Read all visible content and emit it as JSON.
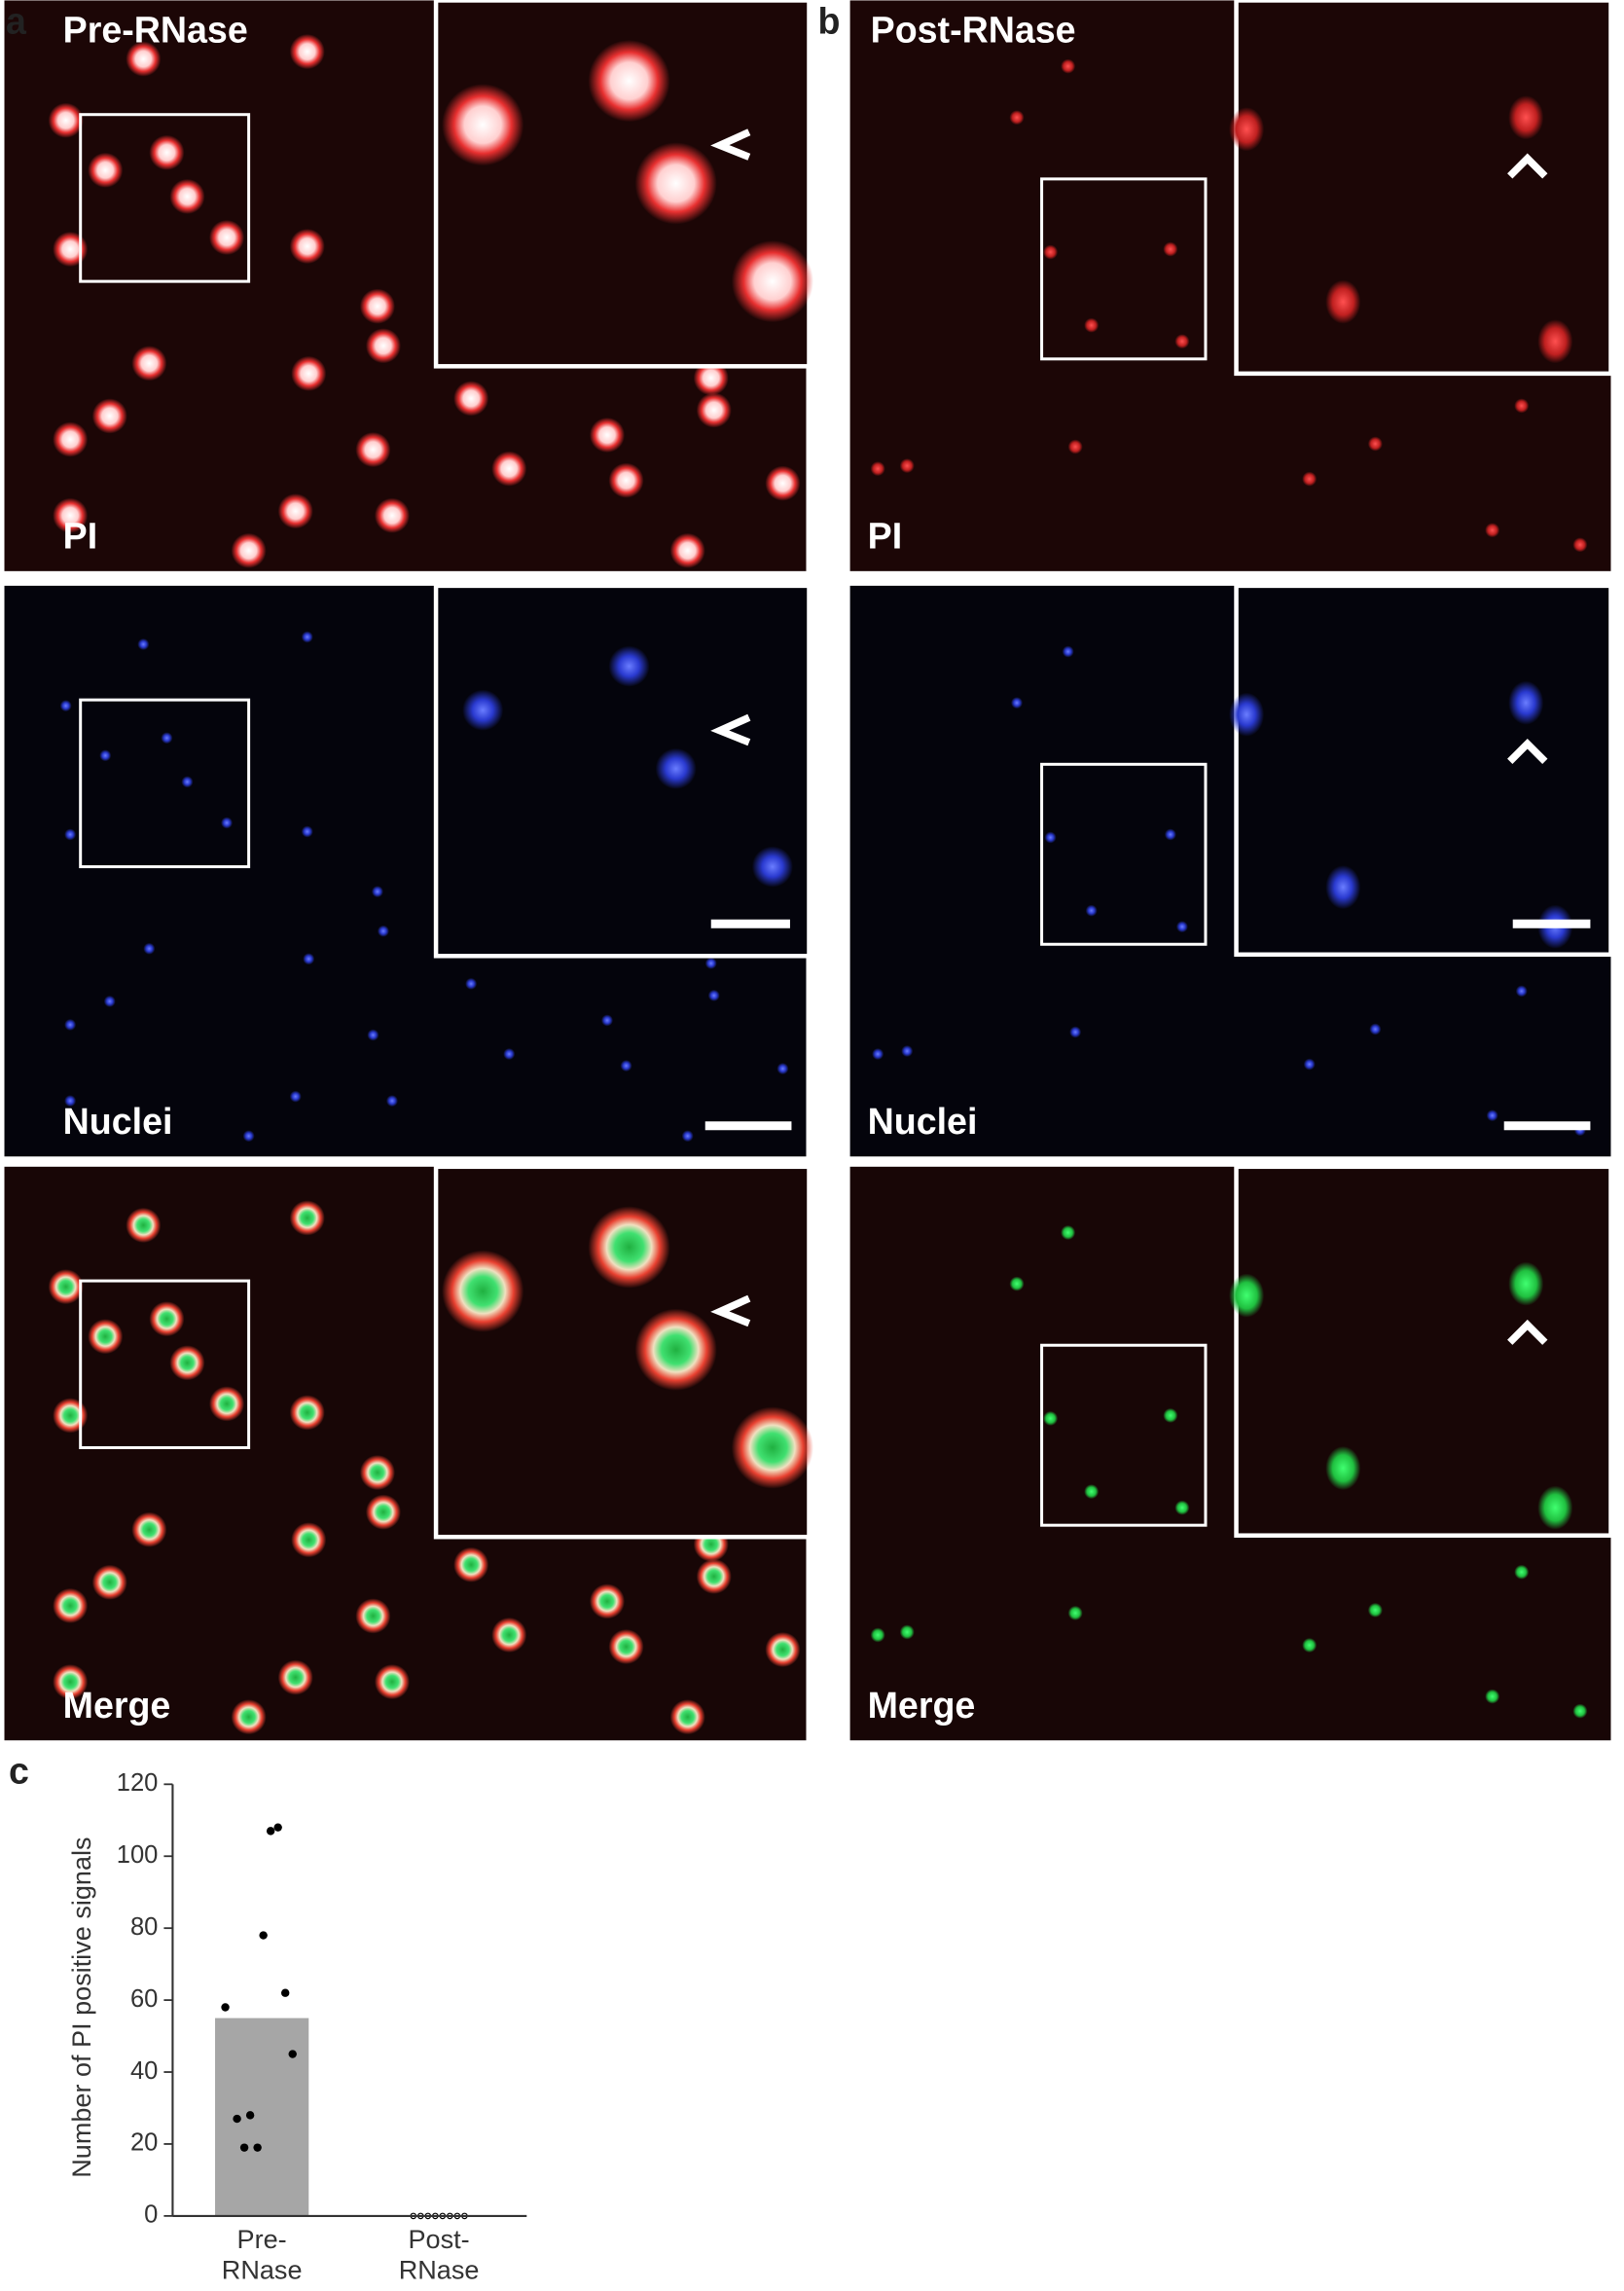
{
  "panels": [
    {
      "letter": "a",
      "title": "Pre-RNase",
      "rows": [
        "PI",
        "Nuclei",
        "Merge"
      ]
    },
    {
      "letter": "b",
      "title": "Post-RNase",
      "rows": [
        "PI",
        "Nuclei",
        "Merge"
      ]
    }
  ],
  "chart_letter": "c",
  "chart_data": {
    "type": "bar",
    "y_label": "Number of PI positive signals",
    "categories": [
      "Pre-\nRNase",
      "Post-\nRNase"
    ],
    "values": [
      55,
      0
    ],
    "color": "#a6a6a6",
    "points": [
      [
        108,
        107,
        78,
        62,
        58,
        45,
        28,
        27,
        19,
        19
      ],
      [
        0,
        0,
        0,
        0,
        0,
        0,
        0,
        0
      ]
    ],
    "point_color": "#000000",
    "ylim": [
      0,
      120
    ],
    "yticks": [
      0,
      20,
      40,
      60,
      80,
      100,
      120
    ]
  }
}
